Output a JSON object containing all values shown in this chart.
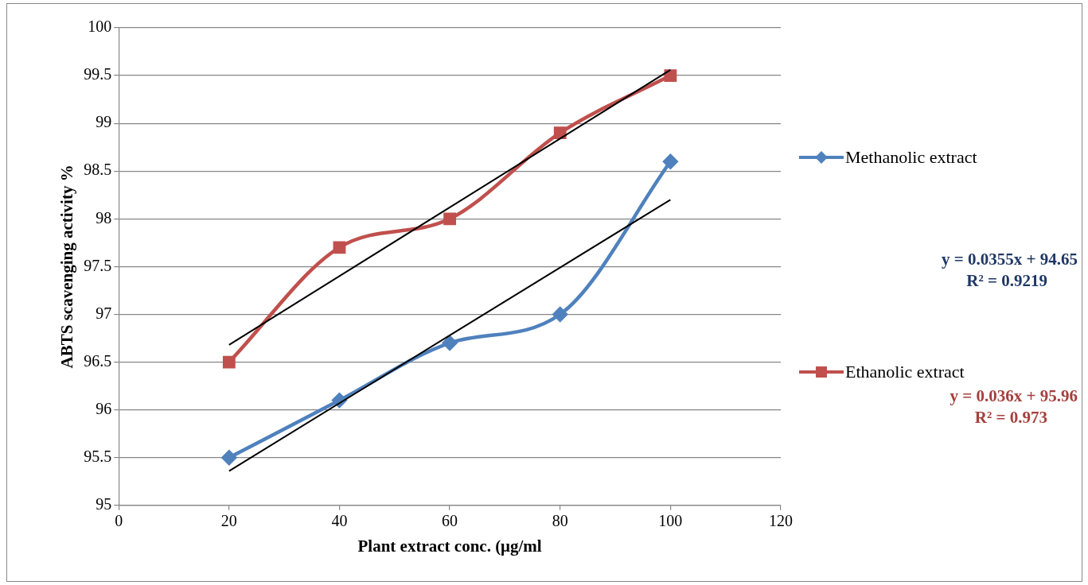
{
  "chart_data": {
    "type": "line",
    "xlabel": "Plant extract conc. (μg/ml",
    "ylabel": "ABTS scavenging activity %",
    "x": [
      20,
      40,
      60,
      80,
      100
    ],
    "series": [
      {
        "name": "Methanolic extract",
        "color": "#4f81bd",
        "marker": "diamond",
        "values": [
          95.5,
          96.1,
          96.7,
          97.0,
          98.6
        ]
      },
      {
        "name": "Ethanolic extract",
        "color": "#c0504d",
        "marker": "square",
        "values": [
          96.5,
          97.7,
          98.0,
          98.9,
          99.5
        ]
      },
      {
        "type": "line",
        "color": "#000000",
        "marker": "none",
        "values": [
          95.36,
          96.07,
          96.78,
          97.49,
          98.2
        ]
      },
      {
        "type": "line",
        "color": "#000000",
        "marker": "none",
        "values": [
          96.68,
          97.4,
          98.12,
          98.84,
          99.56
        ]
      }
    ],
    "xlim": [
      0,
      120
    ],
    "xticks": [
      0,
      20,
      40,
      60,
      80,
      100,
      120
    ],
    "ylim": [
      95,
      100
    ],
    "yticks": [
      95,
      95.5,
      96,
      96.5,
      97,
      97.5,
      98,
      98.5,
      99,
      99.5,
      100
    ],
    "grid": "y",
    "legend": "right",
    "annotations": [
      "y = 0.0355x + 94.65",
      "R² = 0.9219",
      "y = 0.036x + 95.96",
      "R² = 0.973"
    ]
  }
}
